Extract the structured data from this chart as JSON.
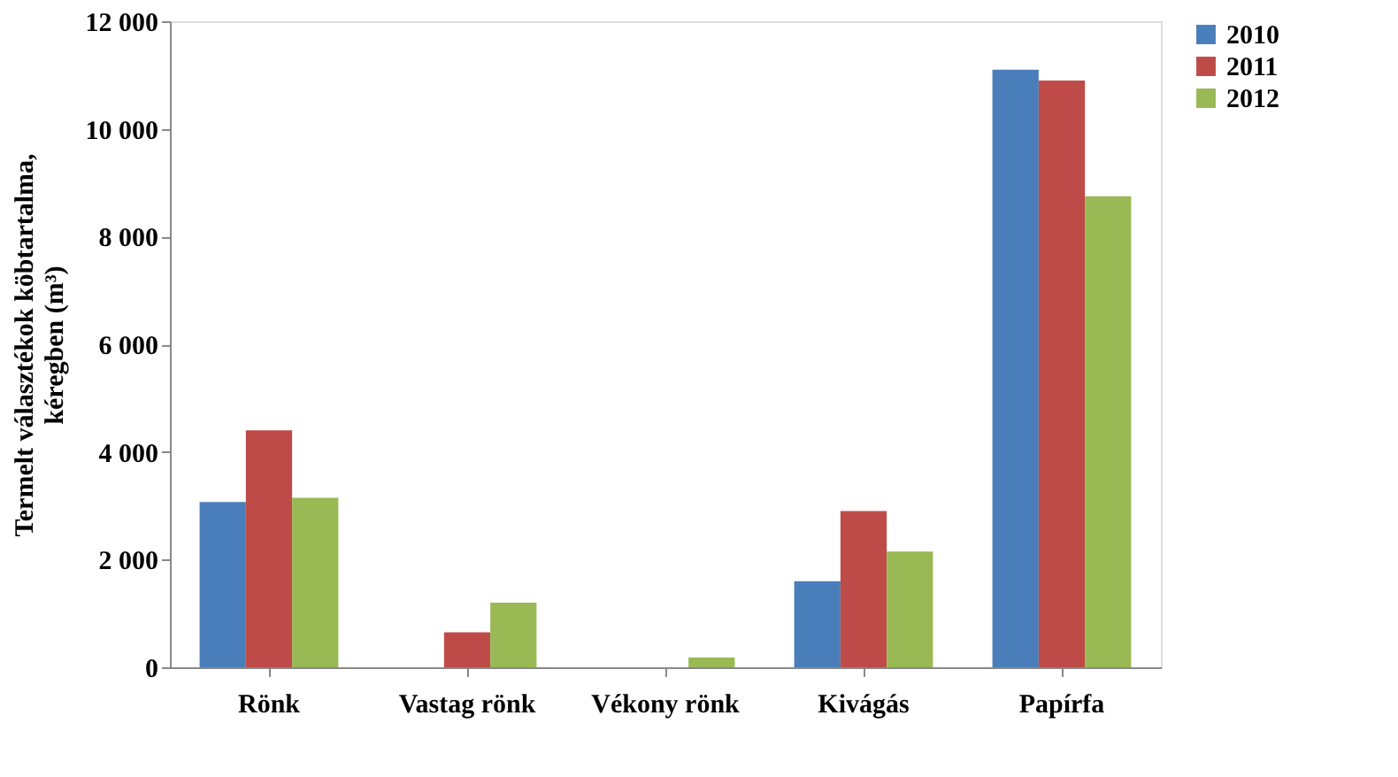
{
  "chart_data": {
    "type": "bar",
    "ylabel": "Termelt választékok köbtartalma,\nkéregben (m³)",
    "categories": [
      "Rönk",
      "Vastag rönk",
      "Vékony rönk",
      "Kivágás",
      "Papírfa"
    ],
    "series": [
      {
        "name": "2010",
        "color": "#4a7ebb",
        "values": [
          3070,
          0,
          0,
          1600,
          11100
        ]
      },
      {
        "name": "2011",
        "color": "#be4b48",
        "values": [
          4400,
          650,
          0,
          2900,
          10900
        ]
      },
      {
        "name": "2012",
        "color": "#98b954",
        "values": [
          3150,
          1200,
          180,
          2150,
          8750
        ]
      }
    ],
    "ylim": [
      0,
      12000
    ],
    "yticks": [
      {
        "value": 0,
        "label": "0"
      },
      {
        "value": 2000,
        "label": "2 000"
      },
      {
        "value": 4000,
        "label": "4 000"
      },
      {
        "value": 6000,
        "label": "6 000"
      },
      {
        "value": 8000,
        "label": "8 000"
      },
      {
        "value": 10000,
        "label": "10 000"
      },
      {
        "value": 12000,
        "label": "12 000"
      }
    ],
    "grid": false,
    "legend": "right"
  }
}
